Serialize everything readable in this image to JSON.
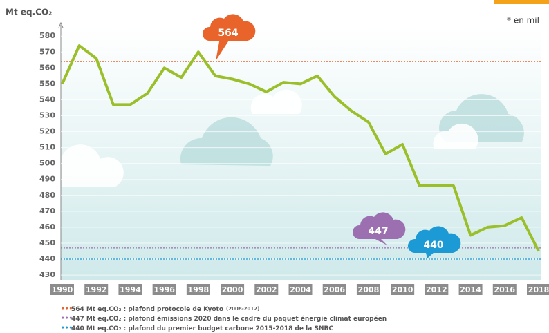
{
  "chart_data": {
    "type": "line",
    "y_label": "Mt eq.CO₂",
    "annotation": "* en mil",
    "x": [
      1990,
      1991,
      1992,
      1993,
      1994,
      1995,
      1996,
      1997,
      1998,
      1999,
      2000,
      2001,
      2002,
      2003,
      2004,
      2005,
      2006,
      2007,
      2008,
      2009,
      2010,
      2011,
      2012,
      2013,
      2014,
      2015,
      2016,
      2017,
      2018
    ],
    "values": [
      550,
      574,
      566,
      537,
      537,
      544,
      560,
      554,
      570,
      555,
      553,
      550,
      545,
      551,
      550,
      555,
      542,
      533,
      526,
      506,
      512,
      486,
      486,
      486,
      455,
      460,
      461,
      466,
      445
    ],
    "color": "#9bbf2a",
    "xlim": [
      1990,
      2018
    ],
    "xticks": [
      1990,
      1992,
      1994,
      1996,
      1998,
      2000,
      2002,
      2004,
      2006,
      2008,
      2010,
      2012,
      2014,
      2016,
      2018
    ],
    "ylim": [
      427,
      584
    ],
    "yticks": [
      430,
      440,
      450,
      460,
      470,
      480,
      490,
      500,
      510,
      520,
      530,
      540,
      550,
      560,
      570,
      580
    ],
    "reference_lines": [
      {
        "value": 564,
        "color": "#e8642a",
        "legend": "564 Mt eq.CO₂ : plafond protocole de Kyoto",
        "legend_note": "(2008-2012)"
      },
      {
        "value": 447,
        "color": "#9b6fb0",
        "legend": "447 Mt eq.CO₂ : plafond émissions 2020 dans le cadre du paquet énergie climat européen"
      },
      {
        "value": 440,
        "color": "#1b9ad6",
        "legend": "440 Mt eq.CO₂ : plafond du premier budget carbone 2015-2018 de la SNBC"
      }
    ]
  }
}
